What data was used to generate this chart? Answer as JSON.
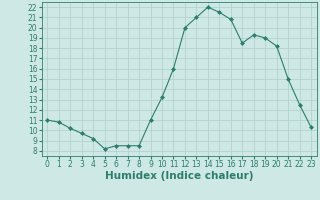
{
  "x": [
    0,
    1,
    2,
    3,
    4,
    5,
    6,
    7,
    8,
    9,
    10,
    11,
    12,
    13,
    14,
    15,
    16,
    17,
    18,
    19,
    20,
    21,
    22,
    23
  ],
  "y": [
    11,
    10.8,
    10.2,
    9.7,
    9.2,
    8.2,
    8.5,
    8.5,
    8.5,
    11.0,
    13.2,
    16.0,
    20.0,
    21.0,
    22.0,
    21.5,
    20.8,
    18.5,
    19.3,
    19.0,
    18.2,
    15.0,
    12.5,
    10.3
  ],
  "line_color": "#2e7d6e",
  "marker": "D",
  "marker_size": 2,
  "bg_color": "#cde8e5",
  "grid_color": "#b0ceca",
  "xlabel": "Humidex (Indice chaleur)",
  "xlim": [
    -0.5,
    23.5
  ],
  "ylim": [
    7.5,
    22.5
  ],
  "yticks": [
    8,
    9,
    10,
    11,
    12,
    13,
    14,
    15,
    16,
    17,
    18,
    19,
    20,
    21,
    22
  ],
  "xticks": [
    0,
    1,
    2,
    3,
    4,
    5,
    6,
    7,
    8,
    9,
    10,
    11,
    12,
    13,
    14,
    15,
    16,
    17,
    18,
    19,
    20,
    21,
    22,
    23
  ],
  "tick_label_fontsize": 5.5,
  "xlabel_fontsize": 7.5
}
